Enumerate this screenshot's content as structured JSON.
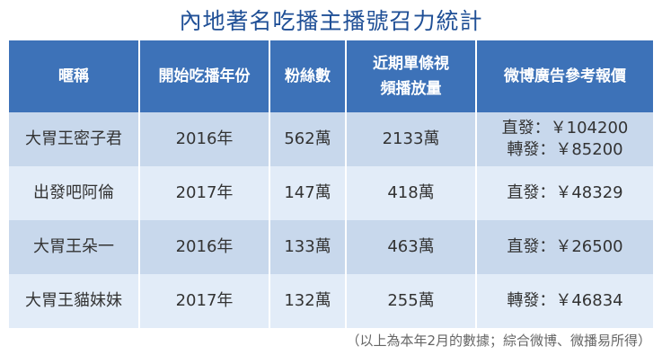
{
  "title": "內地著名吃播主播號召力統計",
  "table": {
    "header": [
      [
        "暱稱"
      ],
      [
        "開始吃播年份"
      ],
      [
        "粉絲數"
      ],
      [
        "近期單條視",
        "頻播放量"
      ],
      [
        "微博廣告參考報價"
      ]
    ],
    "rows": [
      [
        [
          "大胃王密子君"
        ],
        [
          "2016年"
        ],
        [
          "562萬"
        ],
        [
          "2133萬"
        ],
        [
          "直發：￥104200",
          "轉發：￥85200"
        ]
      ],
      [
        [
          "出發吧阿倫"
        ],
        [
          "2017年"
        ],
        [
          "147萬"
        ],
        [
          "418萬"
        ],
        [
          "直發：￥48329"
        ]
      ],
      [
        [
          "大胃王朵一"
        ],
        [
          "2016年"
        ],
        [
          "133萬"
        ],
        [
          "463萬"
        ],
        [
          "直發：￥26500"
        ]
      ],
      [
        [
          "大胃王貓妹妹"
        ],
        [
          "2017年"
        ],
        [
          "132萬"
        ],
        [
          "255萬"
        ],
        [
          "轉發：￥46834"
        ]
      ]
    ]
  },
  "footnote": "（以上為本年2月的數據；綜合微博、微播易所得）"
}
